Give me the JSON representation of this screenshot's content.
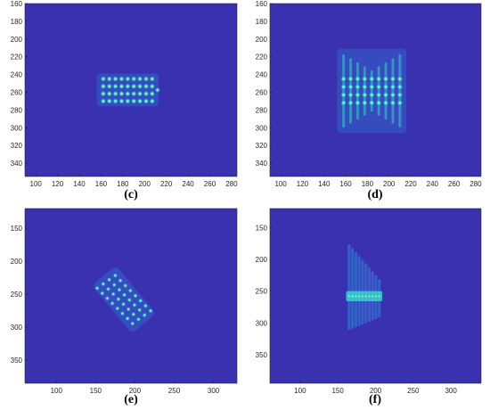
{
  "figure": {
    "background": "#ffffff",
    "plot_background": "#3a31b0",
    "axis_color": "#262626",
    "spot_color_core": "#fff27a",
    "spot_color_mid": "#36e7d0",
    "spot_color_outer": "#2f8fe0"
  },
  "chart_data": [
    {
      "panel": "c",
      "type": "heatmap",
      "caption": "(c)",
      "xlim": [
        90,
        285
      ],
      "ylim": [
        160,
        355
      ],
      "xticks": [
        100,
        120,
        140,
        160,
        180,
        200,
        220,
        240,
        260,
        280
      ],
      "yticks": [
        160,
        180,
        200,
        220,
        240,
        260,
        280,
        300,
        320,
        340
      ],
      "pattern": {
        "kind": "grid",
        "x_range": [
          162,
          207
        ],
        "y_range": [
          245,
          270
        ],
        "cols": 9,
        "rows": 4,
        "tail_x": 212,
        "spread_y": 0
      }
    },
    {
      "panel": "d",
      "type": "heatmap",
      "caption": "(d)",
      "xlim": [
        90,
        285
      ],
      "ylim": [
        160,
        355
      ],
      "xticks": [
        100,
        120,
        140,
        160,
        180,
        200,
        220,
        240,
        260,
        280
      ],
      "yticks": [
        160,
        180,
        200,
        220,
        240,
        260,
        280,
        300,
        320,
        340
      ],
      "pattern": {
        "kind": "grid",
        "x_range": [
          158,
          210
        ],
        "y_range": [
          245,
          272
        ],
        "cols": 9,
        "rows": 4,
        "tail_x": 0,
        "spread_y": 28
      }
    },
    {
      "panel": "e",
      "type": "heatmap",
      "caption": "(e)",
      "xlim": [
        60,
        330
      ],
      "ylim": [
        120,
        385
      ],
      "xticks": [
        100,
        150,
        200,
        250,
        300
      ],
      "yticks": [
        150,
        200,
        250,
        300,
        350
      ],
      "pattern": {
        "kind": "tilted",
        "center": [
          186,
          258
        ],
        "length": 70,
        "width": 30,
        "angle_deg": 50,
        "cols": 8,
        "rows": 4,
        "spread": 0
      }
    },
    {
      "panel": "f",
      "type": "heatmap",
      "caption": "(f)",
      "xlim": [
        60,
        340
      ],
      "ylim": [
        120,
        395
      ],
      "xticks": [
        100,
        150,
        200,
        250,
        300
      ],
      "yticks": [
        150,
        200,
        250,
        300,
        350
      ],
      "pattern": {
        "kind": "streaks",
        "center_y": 258,
        "x_range": [
          165,
          205
        ],
        "count": 10,
        "spread": 75,
        "bar_y_range": [
          250,
          266
        ]
      }
    }
  ]
}
